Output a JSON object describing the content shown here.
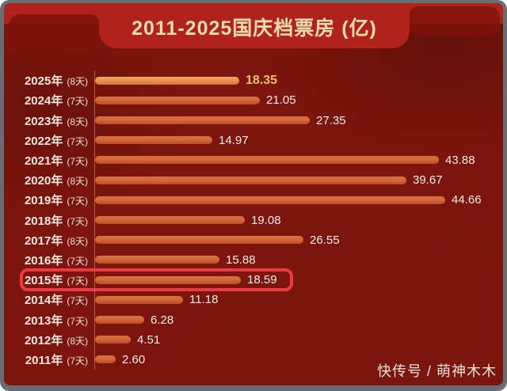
{
  "header": {
    "title": "2011-2025国庆档票房 (亿)",
    "title_color": "#f2ddae",
    "band_color": "#b0231a"
  },
  "watermark": {
    "text": "快传号 / 萌神木木"
  },
  "colors": {
    "background": "#7b150d",
    "frame": "#686d73",
    "bar_orange_top": "#d9703f",
    "bar_orange_bottom": "#bf4a2a",
    "bar_gold_top": "#f1ab60",
    "bar_gold_bottom": "#da7038",
    "value_text": "#f6ece5",
    "value_gold": "#f0c164",
    "label_text": "#f3e8e0",
    "axis_line": "rgba(244,212,180,0.40)",
    "highlight_box": "#ec3a43",
    "watermark_text": "#e9e1db"
  },
  "chart_data": {
    "type": "bar",
    "orientation": "horizontal",
    "title": "2011-2025国庆档票房 (亿)",
    "unit": "亿",
    "value_axis_range": [
      0,
      46
    ],
    "grid": false,
    "legend": "none",
    "categories": [
      "2025年 (8天)",
      "2024年 (7天)",
      "2023年 (8天)",
      "2022年 (7天)",
      "2021年 (7天)",
      "2020年 (8天)",
      "2019年 (7天)",
      "2018年 (7天)",
      "2017年 (8天)",
      "2016年 (7天)",
      "2015年 (7天)",
      "2014年 (7天)",
      "2013年 (7天)",
      "2012年 (8天)",
      "2011年 (7天)"
    ],
    "values": [
      18.35,
      21.05,
      27.35,
      14.97,
      43.88,
      39.67,
      44.66,
      19.08,
      26.55,
      15.88,
      18.59,
      11.18,
      6.28,
      4.51,
      2.6
    ],
    "rows": [
      {
        "year": "2025年",
        "days": "(8天)",
        "value": 18.35,
        "value_label": "18.35",
        "bar_style": "gold",
        "value_style": "gold"
      },
      {
        "year": "2024年",
        "days": "(7天)",
        "value": 21.05,
        "value_label": "21.05"
      },
      {
        "year": "2023年",
        "days": "(8天)",
        "value": 27.35,
        "value_label": "27.35"
      },
      {
        "year": "2022年",
        "days": "(7天)",
        "value": 14.97,
        "value_label": "14.97"
      },
      {
        "year": "2021年",
        "days": "(7天)",
        "value": 43.88,
        "value_label": "43.88"
      },
      {
        "year": "2020年",
        "days": "(8天)",
        "value": 39.67,
        "value_label": "39.67"
      },
      {
        "year": "2019年",
        "days": "(7天)",
        "value": 44.66,
        "value_label": "44.66"
      },
      {
        "year": "2018年",
        "days": "(7天)",
        "value": 19.08,
        "value_label": "19.08"
      },
      {
        "year": "2017年",
        "days": "(8天)",
        "value": 26.55,
        "value_label": "26.55"
      },
      {
        "year": "2016年",
        "days": "(7天)",
        "value": 15.88,
        "value_label": "15.88"
      },
      {
        "year": "2015年",
        "days": "(7天)",
        "value": 18.59,
        "value_label": "18.59",
        "highlighted": true
      },
      {
        "year": "2014年",
        "days": "(7天)",
        "value": 11.18,
        "value_label": "11.18"
      },
      {
        "year": "2013年",
        "days": "(7天)",
        "value": 6.28,
        "value_label": "6.28"
      },
      {
        "year": "2012年",
        "days": "(8天)",
        "value": 4.51,
        "value_label": "4.51"
      },
      {
        "year": "2011年",
        "days": "(7天)",
        "value": 2.6,
        "value_label": "2.60"
      }
    ],
    "highlight_annotation": {
      "target_row": "2015年",
      "shape": "red-rounded-box"
    }
  }
}
